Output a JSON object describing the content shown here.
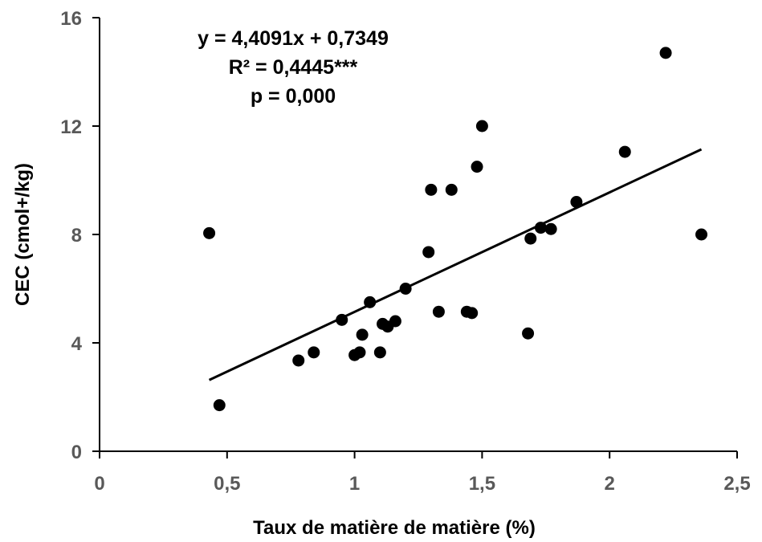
{
  "chart_data": {
    "type": "scatter",
    "xlabel": "Taux de matière de matière (%)",
    "ylabel": "CEC (cmol+/kg)",
    "xlim": [
      0,
      2.5
    ],
    "ylim": [
      0,
      16
    ],
    "x_ticks": [
      0,
      0.5,
      1,
      1.5,
      2,
      2.5
    ],
    "x_tick_labels": [
      "0",
      "0,5",
      "1",
      "1,5",
      "2",
      "2,5"
    ],
    "y_ticks": [
      0,
      4,
      8,
      12,
      16
    ],
    "y_tick_labels": [
      "0",
      "4",
      "8",
      "12",
      "16"
    ],
    "grid": false,
    "legend": "none",
    "annotations": [
      "y = 4,4091x + 0,7349",
      "R² = 0,4445***",
      "p = 0,000"
    ],
    "trendline": {
      "slope": 4.4091,
      "intercept": 0.7349,
      "x_range": [
        0.43,
        2.36
      ]
    },
    "points": [
      {
        "x": 0.43,
        "y": 8.05
      },
      {
        "x": 0.47,
        "y": 1.7
      },
      {
        "x": 0.78,
        "y": 3.35
      },
      {
        "x": 0.84,
        "y": 3.65
      },
      {
        "x": 0.95,
        "y": 4.85
      },
      {
        "x": 1.0,
        "y": 3.55
      },
      {
        "x": 1.02,
        "y": 3.65
      },
      {
        "x": 1.03,
        "y": 4.3
      },
      {
        "x": 1.06,
        "y": 5.5
      },
      {
        "x": 1.1,
        "y": 3.65
      },
      {
        "x": 1.11,
        "y": 4.7
      },
      {
        "x": 1.13,
        "y": 4.6
      },
      {
        "x": 1.16,
        "y": 4.8
      },
      {
        "x": 1.2,
        "y": 6.0
      },
      {
        "x": 1.29,
        "y": 7.35
      },
      {
        "x": 1.3,
        "y": 9.65
      },
      {
        "x": 1.33,
        "y": 5.15
      },
      {
        "x": 1.38,
        "y": 9.65
      },
      {
        "x": 1.44,
        "y": 5.15
      },
      {
        "x": 1.46,
        "y": 5.1
      },
      {
        "x": 1.48,
        "y": 10.5
      },
      {
        "x": 1.5,
        "y": 12.0
      },
      {
        "x": 1.68,
        "y": 4.35
      },
      {
        "x": 1.69,
        "y": 7.85
      },
      {
        "x": 1.73,
        "y": 8.25
      },
      {
        "x": 1.77,
        "y": 8.2
      },
      {
        "x": 1.87,
        "y": 9.2
      },
      {
        "x": 2.06,
        "y": 11.05
      },
      {
        "x": 2.22,
        "y": 14.7
      },
      {
        "x": 2.36,
        "y": 8.0
      }
    ]
  }
}
